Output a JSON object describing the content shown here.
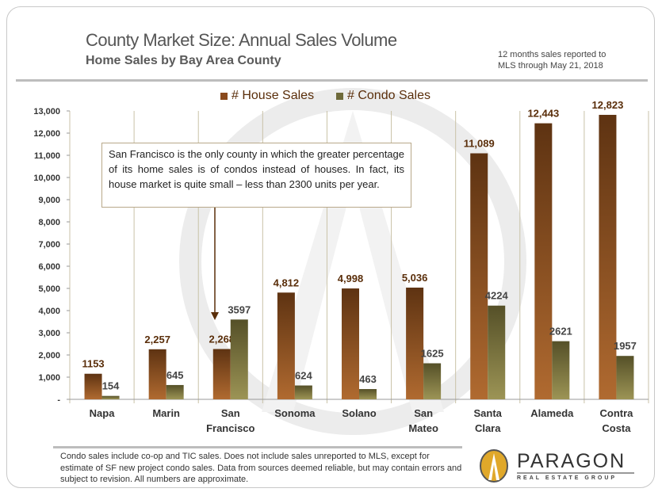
{
  "header": {
    "title": "County Market Size: Annual Sales Volume",
    "subtitle": "Home Sales by Bay Area County",
    "note_line1": "12 months sales reported to",
    "note_line2": "MLS through May 21, 2018"
  },
  "callout": {
    "text": "San Francisco is the only county in which the greater percentage of its home sales is of condos instead of houses. In fact, its house market is quite small – less than 2300 units per year."
  },
  "footer": {
    "text": "Condo sales include co-op and TIC sales. Does not include sales unreported to MLS, except for estimate of SF new project condo sales. Data from sources deemed reliable, but may contain errors and subject to revision. All numbers are approximate.",
    "logo_name": "PARAGON",
    "logo_sub": "REAL ESTATE GROUP"
  },
  "colors": {
    "house": "#8a4a1c",
    "condo": "#6e6a3a",
    "label": "#5a2e0a"
  },
  "chart_data": {
    "type": "bar",
    "title": "County Market Size: Annual Sales Volume",
    "categories": [
      [
        "Napa"
      ],
      [
        "Marin"
      ],
      [
        "San",
        "Francisco"
      ],
      [
        "Sonoma"
      ],
      [
        "Solano"
      ],
      [
        "San",
        "Mateo"
      ],
      [
        "Santa",
        "Clara"
      ],
      [
        "Alameda"
      ],
      [
        "Contra",
        "Costa"
      ]
    ],
    "series": [
      {
        "name": "# House Sales",
        "values": [
          1153,
          2257,
          2268,
          4812,
          4998,
          5036,
          11089,
          12443,
          12823
        ],
        "labels": [
          "1153",
          "2,257",
          "2,268",
          "4,812",
          "4,998",
          "5,036",
          "11,089",
          "12,443",
          "12,823"
        ]
      },
      {
        "name": "# Condo Sales",
        "values": [
          154,
          645,
          3597,
          624,
          463,
          1625,
          4224,
          2621,
          1957
        ],
        "labels": [
          "154",
          "645",
          "3597",
          "624",
          "463",
          "1625",
          "4224",
          "2621",
          "1957"
        ]
      }
    ],
    "yticks": [
      0,
      1000,
      2000,
      3000,
      4000,
      5000,
      6000,
      7000,
      8000,
      9000,
      10000,
      11000,
      12000,
      13000
    ],
    "ytick_labels": [
      "-",
      "1,000",
      "2,000",
      "3,000",
      "4,000",
      "5,000",
      "6,000",
      "7,000",
      "8,000",
      "9,000",
      "10,000",
      "11,000",
      "12,000",
      "13,000"
    ],
    "ylim": [
      0,
      13000
    ],
    "legend": "top-center"
  }
}
